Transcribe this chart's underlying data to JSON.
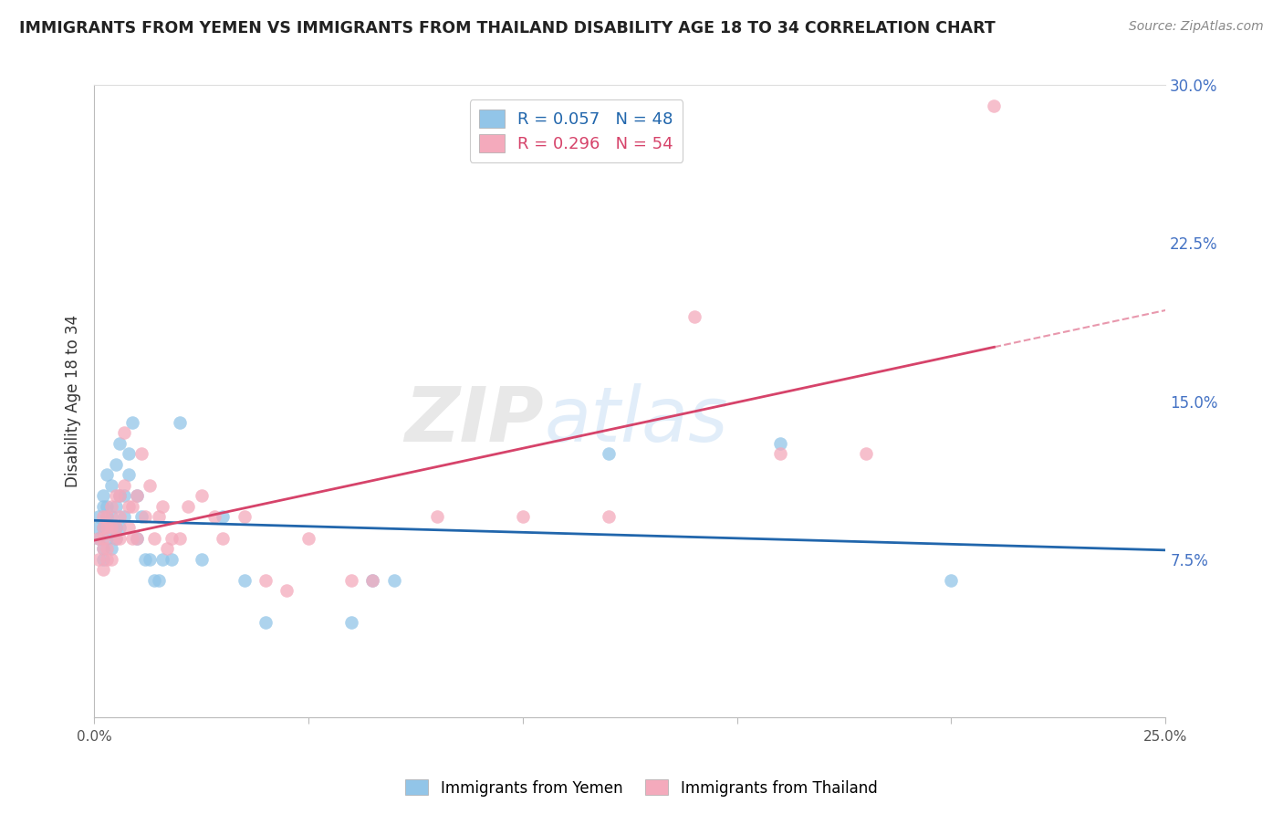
{
  "title": "IMMIGRANTS FROM YEMEN VS IMMIGRANTS FROM THAILAND DISABILITY AGE 18 TO 34 CORRELATION CHART",
  "source": "Source: ZipAtlas.com",
  "ylabel": "Disability Age 18 to 34",
  "xlim": [
    0.0,
    0.25
  ],
  "ylim": [
    0.0,
    0.3
  ],
  "x_ticks": [
    0.0,
    0.05,
    0.1,
    0.15,
    0.2,
    0.25
  ],
  "x_tick_labels": [
    "0.0%",
    "",
    "",
    "",
    "",
    "25.0%"
  ],
  "y_ticks": [
    0.0,
    0.075,
    0.15,
    0.225,
    0.3
  ],
  "y_tick_labels_right": [
    "",
    "7.5%",
    "15.0%",
    "22.5%",
    "30.0%"
  ],
  "color_yemen": "#92C5E8",
  "color_thailand": "#F4AABC",
  "color_line_yemen": "#2166AC",
  "color_line_thailand": "#D6436A",
  "background_color": "#ffffff",
  "grid_color": "#d0d0d0",
  "yemen_x": [
    0.001,
    0.001,
    0.001,
    0.002,
    0.002,
    0.002,
    0.002,
    0.002,
    0.003,
    0.003,
    0.003,
    0.003,
    0.004,
    0.004,
    0.004,
    0.004,
    0.005,
    0.005,
    0.005,
    0.005,
    0.006,
    0.006,
    0.006,
    0.007,
    0.007,
    0.008,
    0.008,
    0.009,
    0.01,
    0.01,
    0.011,
    0.012,
    0.013,
    0.014,
    0.015,
    0.016,
    0.018,
    0.02,
    0.025,
    0.03,
    0.035,
    0.04,
    0.06,
    0.065,
    0.07,
    0.12,
    0.16,
    0.2
  ],
  "yemen_y": [
    0.085,
    0.09,
    0.095,
    0.075,
    0.08,
    0.09,
    0.1,
    0.105,
    0.085,
    0.095,
    0.1,
    0.115,
    0.08,
    0.09,
    0.095,
    0.11,
    0.085,
    0.09,
    0.1,
    0.12,
    0.09,
    0.105,
    0.13,
    0.095,
    0.105,
    0.115,
    0.125,
    0.14,
    0.085,
    0.105,
    0.095,
    0.075,
    0.075,
    0.065,
    0.065,
    0.075,
    0.075,
    0.14,
    0.075,
    0.095,
    0.065,
    0.045,
    0.045,
    0.065,
    0.065,
    0.125,
    0.13,
    0.065
  ],
  "thailand_x": [
    0.001,
    0.001,
    0.002,
    0.002,
    0.002,
    0.002,
    0.002,
    0.003,
    0.003,
    0.003,
    0.003,
    0.004,
    0.004,
    0.004,
    0.005,
    0.005,
    0.005,
    0.006,
    0.006,
    0.006,
    0.007,
    0.007,
    0.008,
    0.008,
    0.009,
    0.009,
    0.01,
    0.01,
    0.011,
    0.012,
    0.013,
    0.014,
    0.015,
    0.016,
    0.017,
    0.018,
    0.02,
    0.022,
    0.025,
    0.028,
    0.03,
    0.035,
    0.04,
    0.045,
    0.05,
    0.06,
    0.065,
    0.08,
    0.1,
    0.12,
    0.14,
    0.16,
    0.18,
    0.21
  ],
  "thailand_y": [
    0.075,
    0.085,
    0.07,
    0.08,
    0.085,
    0.09,
    0.095,
    0.075,
    0.08,
    0.09,
    0.095,
    0.075,
    0.09,
    0.1,
    0.085,
    0.09,
    0.105,
    0.085,
    0.095,
    0.105,
    0.11,
    0.135,
    0.09,
    0.1,
    0.085,
    0.1,
    0.085,
    0.105,
    0.125,
    0.095,
    0.11,
    0.085,
    0.095,
    0.1,
    0.08,
    0.085,
    0.085,
    0.1,
    0.105,
    0.095,
    0.085,
    0.095,
    0.065,
    0.06,
    0.085,
    0.065,
    0.065,
    0.095,
    0.095,
    0.095,
    0.19,
    0.125,
    0.125,
    0.29
  ]
}
